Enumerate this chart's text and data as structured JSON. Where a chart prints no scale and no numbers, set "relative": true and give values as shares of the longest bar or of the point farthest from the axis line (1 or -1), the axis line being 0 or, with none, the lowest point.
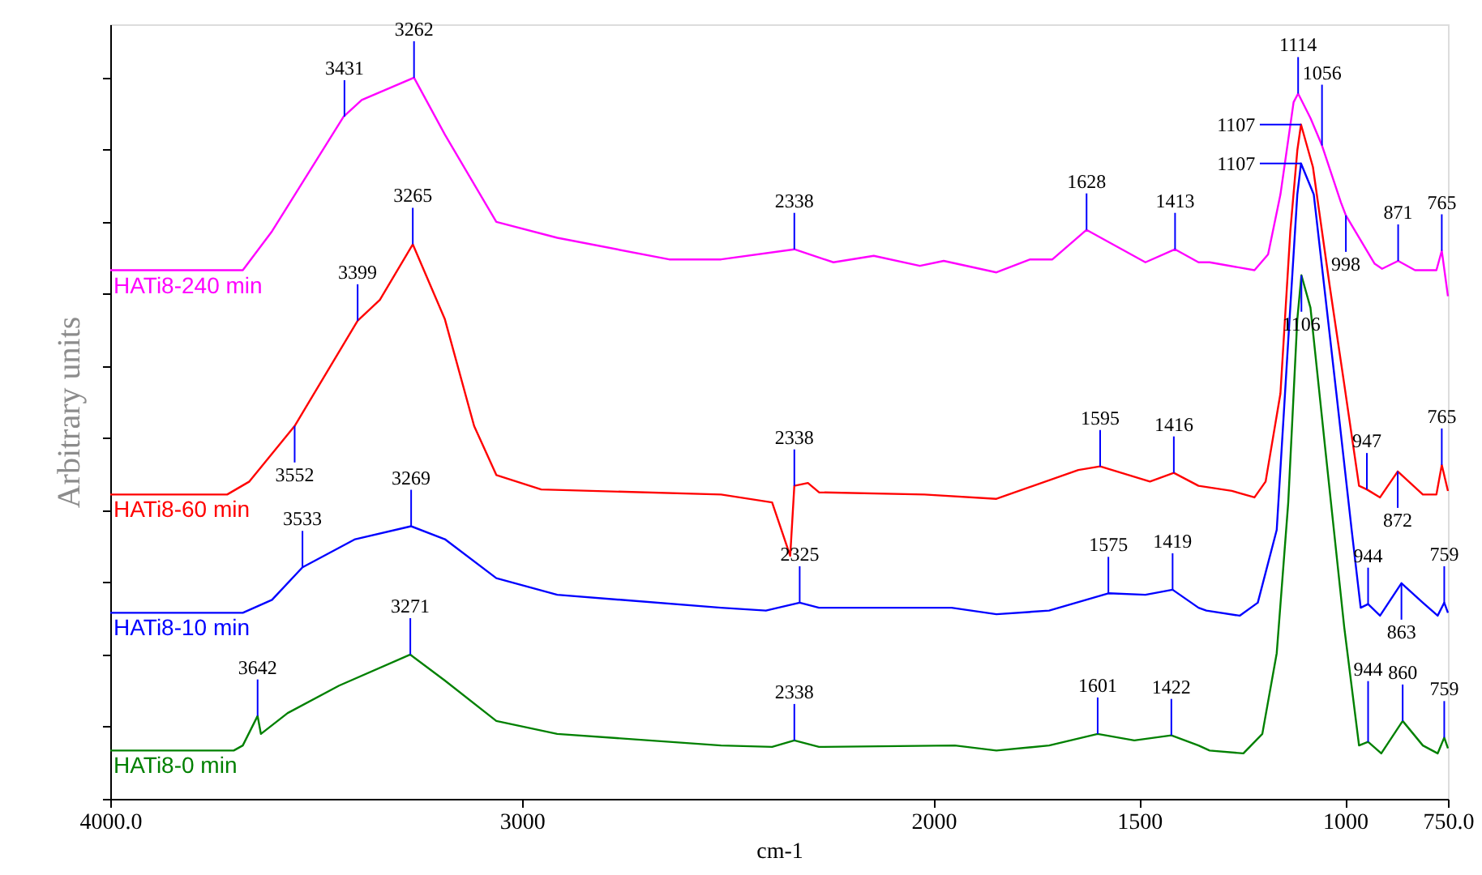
{
  "chart_data": {
    "type": "line",
    "relative": true,
    "xlabel": "cm-1",
    "ylabel": "Arbitrary units",
    "xlim": [
      4000,
      750
    ],
    "xticks": [
      {
        "value": 4000,
        "label": "4000.0"
      },
      3000,
      2000,
      1500,
      1000,
      {
        "value": 750,
        "label": "750.0"
      }
    ],
    "grid": false,
    "marker": "none",
    "line_style": "solid",
    "series": [
      {
        "name": "HATi8-240 min",
        "color": "#ff00ff",
        "x": [
          4000,
          3800,
          3678,
          3607,
          3433,
          3389,
          3262,
          3187,
          3062,
          2914,
          2642,
          2516,
          2338,
          2243,
          2145,
          2033,
          1975,
          1847,
          1765,
          1711,
          1628,
          1485,
          1413,
          1356,
          1329,
          1220,
          1187,
          1157,
          1125,
          1114,
          1084,
          1056,
          1010,
          998,
          928,
          910,
          871,
          830,
          778,
          765,
          750
        ],
        "values": [
          0.733,
          0.733,
          0.733,
          0.787,
          0.946,
          0.969,
          1.0,
          0.921,
          0.8,
          0.778,
          0.748,
          0.748,
          0.762,
          0.744,
          0.753,
          0.739,
          0.746,
          0.73,
          0.748,
          0.748,
          0.789,
          0.744,
          0.762,
          0.744,
          0.744,
          0.733,
          0.755,
          0.838,
          0.966,
          0.978,
          0.944,
          0.906,
          0.827,
          0.809,
          0.742,
          0.735,
          0.746,
          0.733,
          0.733,
          0.76,
          0.697
        ]
      },
      {
        "name": "HATi8-60 min",
        "color": "#ff0000",
        "x": [
          4000,
          3716,
          3662,
          3552,
          3399,
          3345,
          3265,
          3187,
          3116,
          3062,
          2953,
          2516,
          2392,
          2348,
          2338,
          2305,
          2278,
          2022,
          1847,
          1648,
          1595,
          1474,
          1416,
          1356,
          1275,
          1220,
          1193,
          1157,
          1133,
          1116,
          1107,
          1078,
          1037,
          1002,
          966,
          947,
          915,
          872,
          811,
          778,
          765,
          750
        ],
        "values": [
          0.422,
          0.422,
          0.44,
          0.517,
          0.663,
          0.692,
          0.769,
          0.665,
          0.517,
          0.449,
          0.429,
          0.422,
          0.411,
          0.337,
          0.434,
          0.438,
          0.425,
          0.422,
          0.416,
          0.456,
          0.461,
          0.44,
          0.452,
          0.434,
          0.427,
          0.418,
          0.44,
          0.562,
          0.787,
          0.899,
          0.935,
          0.876,
          0.71,
          0.575,
          0.434,
          0.429,
          0.418,
          0.454,
          0.422,
          0.422,
          0.463,
          0.427
        ]
      },
      {
        "name": "HATi8-10 min",
        "color": "#0000ff",
        "x": [
          4000,
          3678,
          3607,
          3533,
          3405,
          3269,
          3187,
          3062,
          2914,
          2516,
          2407,
          2325,
          2278,
          1956,
          1847,
          1719,
          1575,
          1485,
          1419,
          1356,
          1337,
          1256,
          1212,
          1166,
          1138,
          1116,
          1107,
          1076,
          1021,
          984,
          962,
          944,
          915,
          863,
          811,
          775,
          759,
          750
        ],
        "values": [
          0.258,
          0.258,
          0.276,
          0.321,
          0.36,
          0.378,
          0.36,
          0.306,
          0.283,
          0.265,
          0.261,
          0.272,
          0.265,
          0.265,
          0.256,
          0.261,
          0.285,
          0.283,
          0.29,
          0.265,
          0.261,
          0.254,
          0.272,
          0.373,
          0.636,
          0.838,
          0.881,
          0.838,
          0.562,
          0.373,
          0.265,
          0.27,
          0.254,
          0.299,
          0.272,
          0.254,
          0.272,
          0.258
        ]
      },
      {
        "name": "HATi8-0 min",
        "color": "#008000",
        "x": [
          4000,
          3700,
          3678,
          3642,
          3634,
          3569,
          3444,
          3271,
          3187,
          3062,
          2914,
          2516,
          2392,
          2338,
          2278,
          1948,
          1847,
          1719,
          1601,
          1512,
          1422,
          1356,
          1329,
          1247,
          1201,
          1166,
          1138,
          1116,
          1106,
          1084,
          1048,
          1002,
          966,
          944,
          912,
          860,
          811,
          775,
          759,
          750
        ],
        "values": [
          0.067,
          0.067,
          0.074,
          0.115,
          0.09,
          0.119,
          0.157,
          0.2,
          0.164,
          0.108,
          0.09,
          0.074,
          0.072,
          0.081,
          0.072,
          0.074,
          0.067,
          0.074,
          0.09,
          0.081,
          0.088,
          0.074,
          0.067,
          0.063,
          0.09,
          0.202,
          0.411,
          0.665,
          0.726,
          0.681,
          0.485,
          0.238,
          0.074,
          0.079,
          0.063,
          0.108,
          0.074,
          0.063,
          0.085,
          0.07
        ]
      }
    ],
    "annotations": [
      {
        "text": "3431",
        "x": 3431,
        "y": 0.946
      },
      {
        "text": "3262",
        "x": 3262,
        "y": 1.0
      },
      {
        "text": "2338",
        "x": 2338,
        "y": 0.762
      },
      {
        "text": "1628",
        "x": 1628,
        "y": 0.789
      },
      {
        "text": "1413",
        "x": 1413,
        "y": 0.762
      },
      {
        "text": "1114",
        "x": 1114,
        "y": 0.978
      },
      {
        "text": "1056",
        "x": 1056,
        "y": 0.906
      },
      {
        "text": "998",
        "x": 998,
        "y": 0.809
      },
      {
        "text": "871",
        "x": 871,
        "y": 0.746
      },
      {
        "text": "765",
        "x": 765,
        "y": 0.76
      },
      {
        "text": "3552",
        "x": 3552,
        "y": 0.517
      },
      {
        "text": "3399",
        "x": 3399,
        "y": 0.663
      },
      {
        "text": "3265",
        "x": 3265,
        "y": 0.769
      },
      {
        "text": "2338",
        "x": 2338,
        "y": 0.434
      },
      {
        "text": "1595",
        "x": 1595,
        "y": 0.461
      },
      {
        "text": "1416",
        "x": 1416,
        "y": 0.452
      },
      {
        "text": "1107",
        "x": 1107,
        "y": 0.935
      },
      {
        "text": "947",
        "x": 947,
        "y": 0.429
      },
      {
        "text": "872",
        "x": 872,
        "y": 0.454
      },
      {
        "text": "765",
        "x": 765,
        "y": 0.463
      },
      {
        "text": "3533",
        "x": 3533,
        "y": 0.321
      },
      {
        "text": "3269",
        "x": 3269,
        "y": 0.378
      },
      {
        "text": "2325",
        "x": 2325,
        "y": 0.272
      },
      {
        "text": "1575",
        "x": 1575,
        "y": 0.285
      },
      {
        "text": "1419",
        "x": 1419,
        "y": 0.29
      },
      {
        "text": "1107",
        "x": 1107,
        "y": 0.881
      },
      {
        "text": "944",
        "x": 944,
        "y": 0.27
      },
      {
        "text": "863",
        "x": 863,
        "y": 0.299
      },
      {
        "text": "759",
        "x": 759,
        "y": 0.272
      },
      {
        "text": "3642",
        "x": 3642,
        "y": 0.115
      },
      {
        "text": "3271",
        "x": 3271,
        "y": 0.2
      },
      {
        "text": "2338",
        "x": 2338,
        "y": 0.081
      },
      {
        "text": "1601",
        "x": 1601,
        "y": 0.09
      },
      {
        "text": "1422",
        "x": 1422,
        "y": 0.088
      },
      {
        "text": "1106",
        "x": 1106,
        "y": 0.726
      },
      {
        "text": "944",
        "x": 944,
        "y": 0.079
      },
      {
        "text": "860",
        "x": 860,
        "y": 0.108
      },
      {
        "text": "759",
        "x": 759,
        "y": 0.085
      }
    ]
  }
}
